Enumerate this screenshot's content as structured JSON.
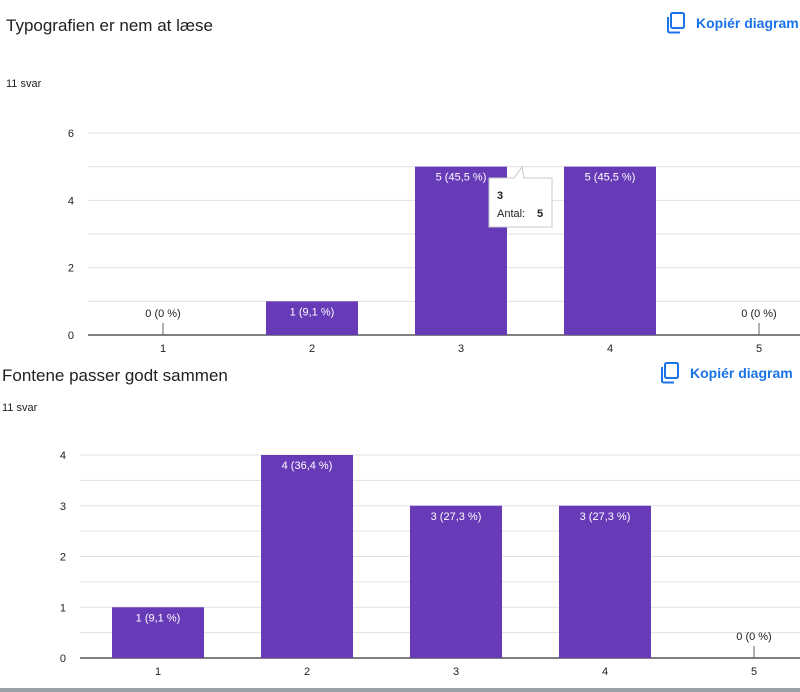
{
  "colors": {
    "bar": "#673ab7",
    "grid": "#e0e0e0",
    "axis": "#333333",
    "link": "#1a73e8"
  },
  "icons": {
    "copy": "copy-icon"
  },
  "sections": [
    {
      "title": "Typografien er nem at læse",
      "responses": "11 svar",
      "copy_label": "Kopiér diagram"
    },
    {
      "title": "Fontene passer godt sammen",
      "responses": "11 svar",
      "copy_label": "Kopiér diagram"
    }
  ],
  "tooltip": {
    "category": "3",
    "label": "Antal:",
    "value": "5"
  },
  "chart_data": [
    {
      "type": "bar",
      "title": "Typografien er nem at læse",
      "categories": [
        "1",
        "2",
        "3",
        "4",
        "5"
      ],
      "values": [
        0,
        1,
        5,
        5,
        0
      ],
      "labels": [
        "0 (0 %)",
        "1 (9,1 %)",
        "5 (45,5 %)",
        "5 (45,5 %)",
        "0 (0 %)"
      ],
      "yticks": [
        0,
        2,
        4,
        6
      ],
      "ylim": [
        0,
        6
      ],
      "grid": true
    },
    {
      "type": "bar",
      "title": "Fontene passer godt sammen",
      "categories": [
        "1",
        "2",
        "3",
        "4",
        "5"
      ],
      "values": [
        1,
        4,
        3,
        3,
        0
      ],
      "labels": [
        "1 (9,1 %)",
        "4 (36,4 %)",
        "3 (27,3 %)",
        "3 (27,3 %)",
        "0 (0 %)"
      ],
      "yticks": [
        0,
        1,
        2,
        3,
        4
      ],
      "ylim": [
        0,
        4
      ],
      "grid": true
    }
  ]
}
